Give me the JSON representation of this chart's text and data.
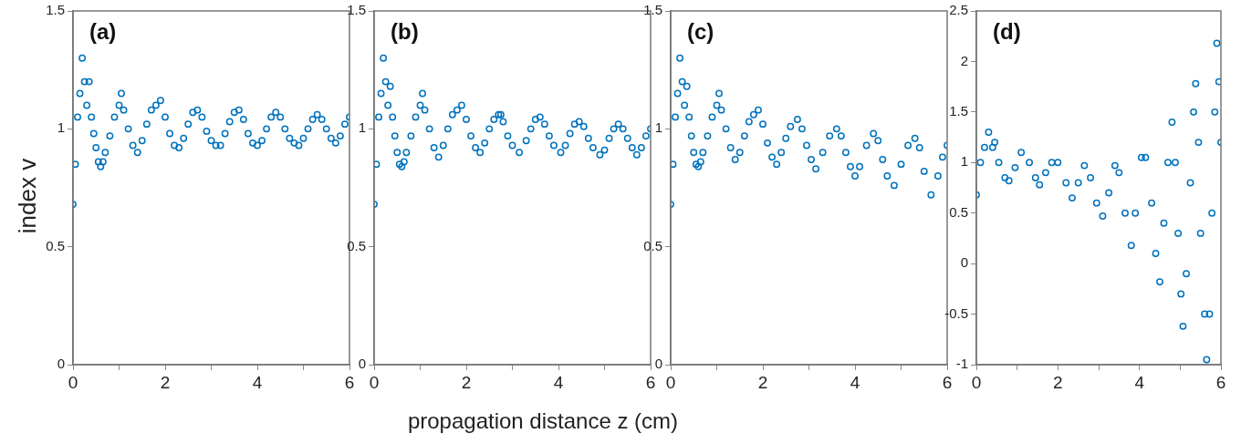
{
  "chart_data": [
    {
      "type": "scatter",
      "title": "(a)",
      "ylabel": "index v",
      "marker": "circle",
      "xlim": [
        0,
        6
      ],
      "xticks": [
        0,
        {
          "value": 1,
          "label": null
        },
        2,
        {
          "value": 3,
          "label": null
        },
        4,
        {
          "value": 5,
          "label": null
        },
        6
      ],
      "ylim": [
        0,
        1.5
      ],
      "yticks": [
        0,
        0.5,
        1,
        1.5
      ],
      "series": [
        {
          "color": "#0072bd",
          "x": [
            0,
            0.05,
            0.1,
            0.15,
            0.2,
            0.25,
            0.3,
            0.35,
            0.4,
            0.45,
            0.5,
            0.55,
            0.6,
            0.65,
            0.7,
            0.8,
            0.9,
            1.0,
            1.05,
            1.1,
            1.2,
            1.3,
            1.4,
            1.5,
            1.6,
            1.7,
            1.8,
            1.9,
            2.0,
            2.1,
            2.2,
            2.3,
            2.4,
            2.5,
            2.6,
            2.7,
            2.8,
            2.9,
            3.0,
            3.1,
            3.2,
            3.3,
            3.4,
            3.5,
            3.6,
            3.7,
            3.8,
            3.9,
            4.0,
            4.1,
            4.2,
            4.3,
            4.4,
            4.5,
            4.6,
            4.7,
            4.8,
            4.9,
            5.0,
            5.1,
            5.2,
            5.3,
            5.4,
            5.5,
            5.6,
            5.7,
            5.8,
            5.9,
            6.0
          ],
          "values": [
            0.68,
            0.85,
            1.05,
            1.15,
            1.3,
            1.2,
            1.1,
            1.2,
            1.05,
            0.98,
            0.92,
            0.86,
            0.84,
            0.86,
            0.9,
            0.97,
            1.05,
            1.1,
            1.15,
            1.08,
            1.0,
            0.93,
            0.9,
            0.95,
            1.02,
            1.08,
            1.1,
            1.12,
            1.05,
            0.98,
            0.93,
            0.92,
            0.96,
            1.02,
            1.07,
            1.08,
            1.05,
            0.99,
            0.95,
            0.93,
            0.93,
            0.98,
            1.03,
            1.07,
            1.08,
            1.04,
            0.98,
            0.94,
            0.93,
            0.95,
            1.0,
            1.05,
            1.07,
            1.05,
            1.0,
            0.96,
            0.94,
            0.93,
            0.96,
            1.0,
            1.04,
            1.06,
            1.04,
            1.0,
            0.96,
            0.94,
            0.97,
            1.02,
            1.05
          ]
        }
      ]
    },
    {
      "type": "scatter",
      "title": "(b)",
      "xlabel": "propagation distance z (cm)",
      "marker": "circle",
      "xlim": [
        0,
        6
      ],
      "xticks": [
        0,
        {
          "value": 1,
          "label": null
        },
        2,
        {
          "value": 3,
          "label": null
        },
        4,
        {
          "value": 5,
          "label": null
        },
        6
      ],
      "ylim": [
        0,
        1.5
      ],
      "yticks": [
        0,
        0.5,
        1,
        1.5
      ],
      "series": [
        {
          "color": "#0072bd",
          "x": [
            0,
            0.05,
            0.1,
            0.15,
            0.2,
            0.25,
            0.3,
            0.35,
            0.4,
            0.45,
            0.5,
            0.55,
            0.6,
            0.65,
            0.7,
            0.8,
            0.9,
            1.0,
            1.05,
            1.1,
            1.2,
            1.3,
            1.4,
            1.5,
            1.6,
            1.7,
            1.8,
            1.9,
            2.0,
            2.1,
            2.2,
            2.3,
            2.4,
            2.5,
            2.6,
            2.7,
            2.75,
            2.8,
            2.9,
            3.0,
            3.15,
            3.3,
            3.4,
            3.5,
            3.6,
            3.7,
            3.8,
            3.9,
            4.05,
            4.15,
            4.25,
            4.35,
            4.45,
            4.55,
            4.65,
            4.75,
            4.9,
            5.0,
            5.1,
            5.2,
            5.3,
            5.4,
            5.5,
            5.6,
            5.7,
            5.8,
            5.9,
            6.0
          ],
          "values": [
            0.68,
            0.85,
            1.05,
            1.15,
            1.3,
            1.2,
            1.1,
            1.18,
            1.05,
            0.97,
            0.9,
            0.85,
            0.84,
            0.86,
            0.9,
            0.97,
            1.05,
            1.1,
            1.15,
            1.08,
            1.0,
            0.92,
            0.88,
            0.93,
            1.0,
            1.06,
            1.08,
            1.1,
            1.04,
            0.97,
            0.92,
            0.9,
            0.94,
            1.0,
            1.04,
            1.06,
            1.06,
            1.03,
            0.97,
            0.93,
            0.9,
            0.95,
            1.0,
            1.04,
            1.05,
            1.02,
            0.97,
            0.93,
            0.9,
            0.93,
            0.98,
            1.02,
            1.03,
            1.01,
            0.96,
            0.92,
            0.89,
            0.91,
            0.96,
            1.0,
            1.02,
            1.0,
            0.96,
            0.92,
            0.89,
            0.92,
            0.97,
            1.0
          ]
        }
      ]
    },
    {
      "type": "scatter",
      "title": "(c)",
      "marker": "circle",
      "xlim": [
        0,
        6
      ],
      "xticks": [
        0,
        {
          "value": 1,
          "label": null
        },
        2,
        {
          "value": 3,
          "label": null
        },
        4,
        {
          "value": 5,
          "label": null
        },
        6
      ],
      "ylim": [
        0,
        1.5
      ],
      "yticks": [
        0,
        0.5,
        1,
        1.5
      ],
      "series": [
        {
          "color": "#0072bd",
          "x": [
            0,
            0.05,
            0.1,
            0.15,
            0.2,
            0.25,
            0.3,
            0.35,
            0.4,
            0.45,
            0.5,
            0.55,
            0.6,
            0.65,
            0.7,
            0.8,
            0.9,
            1.0,
            1.05,
            1.1,
            1.2,
            1.3,
            1.4,
            1.5,
            1.6,
            1.7,
            1.8,
            1.9,
            2.0,
            2.1,
            2.2,
            2.3,
            2.4,
            2.5,
            2.6,
            2.75,
            2.85,
            2.95,
            3.05,
            3.15,
            3.3,
            3.45,
            3.6,
            3.7,
            3.8,
            3.9,
            4.0,
            4.1,
            4.25,
            4.4,
            4.5,
            4.6,
            4.7,
            4.85,
            5.0,
            5.15,
            5.3,
            5.4,
            5.5,
            5.65,
            5.8,
            5.9,
            6.0
          ],
          "values": [
            0.68,
            0.85,
            1.05,
            1.15,
            1.3,
            1.2,
            1.1,
            1.18,
            1.05,
            0.97,
            0.9,
            0.85,
            0.84,
            0.86,
            0.9,
            0.97,
            1.05,
            1.1,
            1.15,
            1.08,
            1.0,
            0.92,
            0.87,
            0.9,
            0.97,
            1.03,
            1.06,
            1.08,
            1.02,
            0.94,
            0.88,
            0.85,
            0.9,
            0.96,
            1.01,
            1.04,
            1.0,
            0.93,
            0.87,
            0.83,
            0.9,
            0.97,
            1.0,
            0.97,
            0.9,
            0.84,
            0.8,
            0.84,
            0.93,
            0.98,
            0.95,
            0.87,
            0.8,
            0.76,
            0.85,
            0.93,
            0.96,
            0.92,
            0.82,
            0.72,
            0.8,
            0.88,
            0.93
          ]
        }
      ]
    },
    {
      "type": "scatter",
      "title": "(d)",
      "marker": "circle",
      "xlim": [
        0,
        6
      ],
      "xticks": [
        0,
        {
          "value": 1,
          "label": null
        },
        2,
        {
          "value": 3,
          "label": null
        },
        4,
        {
          "value": 5,
          "label": null
        },
        6
      ],
      "ylim": [
        -1,
        2.5
      ],
      "yticks": [
        -1,
        -0.5,
        0,
        0.5,
        1,
        1.5,
        2,
        2.5
      ],
      "series": [
        {
          "color": "#0072bd",
          "x": [
            0,
            0.1,
            0.2,
            0.3,
            0.4,
            0.45,
            0.55,
            0.7,
            0.8,
            0.95,
            1.1,
            1.3,
            1.45,
            1.55,
            1.7,
            1.85,
            2.0,
            2.2,
            2.35,
            2.5,
            2.65,
            2.8,
            2.95,
            3.1,
            3.25,
            3.4,
            3.5,
            3.65,
            3.8,
            3.9,
            4.05,
            4.15,
            4.3,
            4.4,
            4.5,
            4.6,
            4.7,
            4.8,
            4.88,
            4.95,
            5.02,
            5.07,
            5.15,
            5.25,
            5.33,
            5.38,
            5.45,
            5.5,
            5.6,
            5.65,
            5.72,
            5.78,
            5.85,
            5.9,
            5.95,
            6.0
          ],
          "values": [
            0.68,
            1.0,
            1.15,
            1.3,
            1.15,
            1.2,
            1.0,
            0.85,
            0.82,
            0.95,
            1.1,
            1.0,
            0.85,
            0.78,
            0.9,
            1.0,
            1.0,
            0.8,
            0.65,
            0.8,
            0.97,
            0.85,
            0.6,
            0.47,
            0.7,
            0.97,
            0.9,
            0.5,
            0.18,
            0.5,
            1.05,
            1.05,
            0.6,
            0.1,
            -0.18,
            0.4,
            1.0,
            1.4,
            1.0,
            0.3,
            -0.3,
            -0.62,
            -0.1,
            0.8,
            1.5,
            1.78,
            1.2,
            0.3,
            -0.5,
            -0.95,
            -0.5,
            0.5,
            1.5,
            2.18,
            1.8,
            1.2
          ]
        }
      ]
    }
  ]
}
